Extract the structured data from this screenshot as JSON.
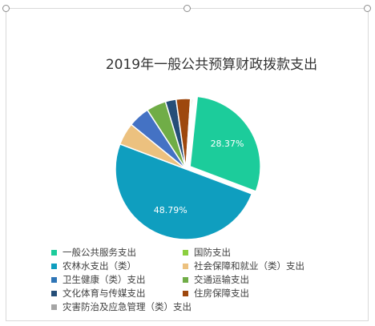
{
  "chart_data": {
    "type": "pie",
    "title": "2019年一般公共预算财政拨款支出",
    "slices": [
      {
        "name": "一般公共服务支出",
        "value": 28.37,
        "label": "28.37%",
        "color": "#1ccc9b"
      },
      {
        "name": "农林水支出（类）",
        "value": 48.79,
        "label": "48.79%",
        "color": "#0f9ebf"
      },
      {
        "name": "社会保障和就业（类）支出",
        "value": 5.0,
        "label": "",
        "color": "#ecc17f"
      },
      {
        "name": "卫生健康（类）支出",
        "value": 4.8,
        "label": "",
        "color": "#4472c4"
      },
      {
        "name": "交通运输支出",
        "value": 4.4,
        "label": "",
        "color": "#70ad47"
      },
      {
        "name": "文化体育与传媒支出",
        "value": 2.4,
        "label": "",
        "color": "#254e78"
      },
      {
        "name": "住房保障支出",
        "value": 3.2,
        "label": "",
        "color": "#9e480e"
      },
      {
        "name": "国防支出",
        "value": 0.3,
        "label": "",
        "color": "#8ccf3f"
      },
      {
        "name": "灾害防治及应急管理（类）支出",
        "value": 0.3,
        "label": "",
        "color": "#a5a5a5"
      }
    ],
    "legend": [
      {
        "name": "一般公共服务支出",
        "color": "#1ccc9b"
      },
      {
        "name": "国防支出",
        "color": "#8ccf3f"
      },
      {
        "name": "农林水支出（类）",
        "color": "#0f9ebf"
      },
      {
        "name": "社会保障和就业（类）支出",
        "color": "#ecc17f"
      },
      {
        "name": "卫生健康（类）支出",
        "color": "#2e75b6"
      },
      {
        "name": "交通运输支出",
        "color": "#70ad47"
      },
      {
        "name": "文化体育与传媒支出",
        "color": "#254e78"
      },
      {
        "name": "住房保障支出",
        "color": "#9e480e"
      },
      {
        "name": "灾害防治及应急管理（类）支出",
        "color": "#a5a5a5"
      }
    ],
    "legend_position": "bottom"
  }
}
